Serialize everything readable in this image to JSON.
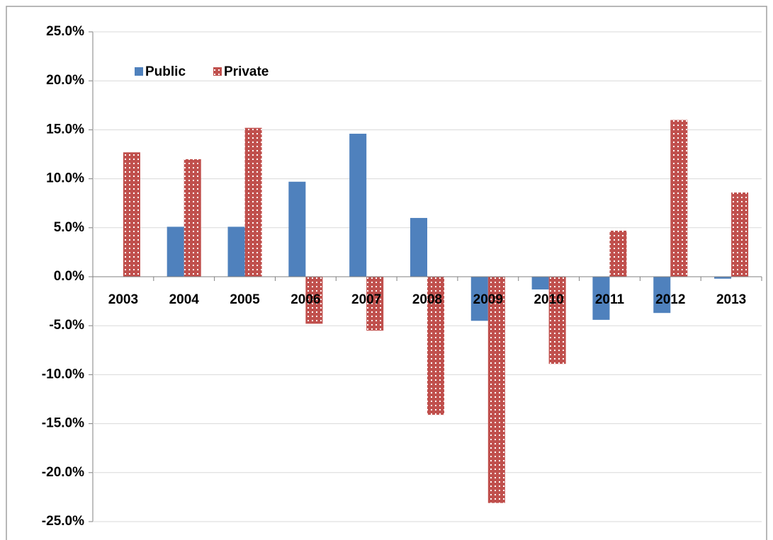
{
  "chart_data": {
    "type": "bar",
    "categories": [
      "2003",
      "2004",
      "2005",
      "2006",
      "2007",
      "2008",
      "2009",
      "2010",
      "2011",
      "2012",
      "2013"
    ],
    "series": [
      {
        "name": "Public",
        "color": "#4f81bd",
        "values": [
          0,
          5.1,
          5.1,
          9.7,
          14.6,
          6.0,
          -4.5,
          -1.3,
          -4.4,
          -3.7,
          -0.2
        ]
      },
      {
        "name": "Private",
        "color": "#c0504d",
        "values": [
          12.7,
          12.0,
          15.2,
          -4.8,
          -5.5,
          -14.1,
          -23.1,
          -8.9,
          4.7,
          16.0,
          8.6
        ]
      }
    ],
    "ylim": [
      -25,
      25
    ],
    "yticks": [
      {
        "value": -25,
        "label": "-25.0%"
      },
      {
        "value": -20,
        "label": "-20.0%"
      },
      {
        "value": -15,
        "label": "-15.0%"
      },
      {
        "value": -10,
        "label": "-10.0%"
      },
      {
        "value": -5,
        "label": "-5.0%"
      },
      {
        "value": 0,
        "label": "0.0%"
      },
      {
        "value": 5,
        "label": "5.0%"
      },
      {
        "value": 10,
        "label": "10.0%"
      },
      {
        "value": 15,
        "label": "15.0%"
      },
      {
        "value": 20,
        "label": "20.0%"
      },
      {
        "value": 25,
        "label": "25.0%"
      }
    ],
    "grid": true,
    "legend": "top-left"
  }
}
